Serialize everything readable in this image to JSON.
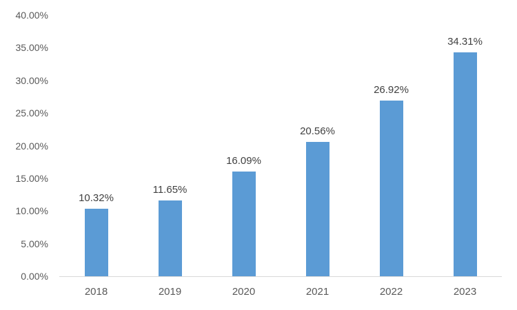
{
  "chart_data": {
    "type": "bar",
    "title": "",
    "xlabel": "",
    "ylabel": "",
    "categories": [
      "2018",
      "2019",
      "2020",
      "2021",
      "2022",
      "2023"
    ],
    "values": [
      10.32,
      11.65,
      16.09,
      20.56,
      26.92,
      34.31
    ],
    "data_labels": [
      "10.32%",
      "11.65%",
      "16.09%",
      "20.56%",
      "26.92%",
      "34.31%"
    ],
    "ylim": [
      0,
      40
    ],
    "ytick_step": 5,
    "ytick_labels": [
      "0.00%",
      "5.00%",
      "10.00%",
      "15.00%",
      "20.00%",
      "25.00%",
      "30.00%",
      "35.00%",
      "40.00%"
    ],
    "grid": false,
    "legend_position": "none",
    "colors": {
      "bar": "#5B9BD5",
      "axis_line": "#D9D9D9",
      "data_label": "#404040",
      "tick_label": "#595959",
      "background": "#FFFFFF"
    }
  }
}
